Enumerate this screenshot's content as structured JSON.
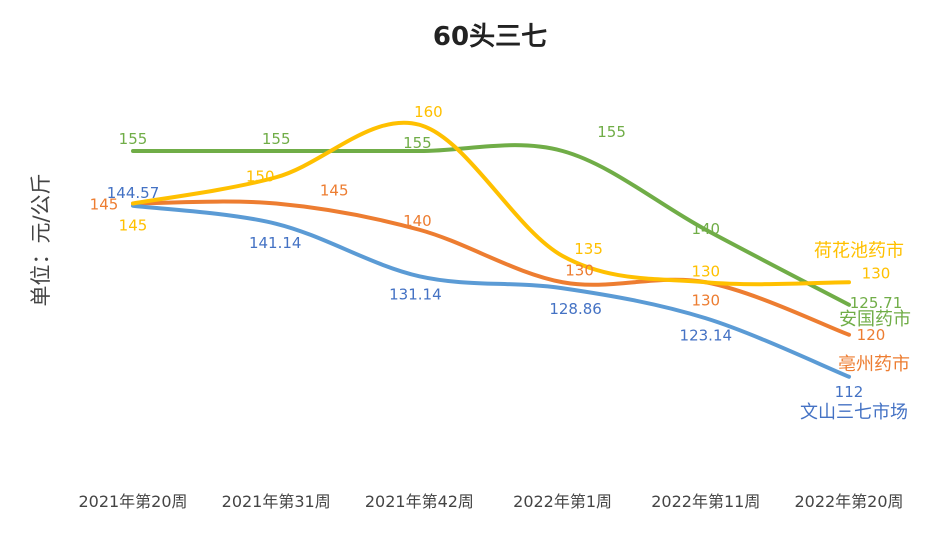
{
  "chart_data": {
    "type": "line",
    "title": "60头三七",
    "xlabel": "",
    "ylabel": "单位：元/公斤",
    "categories": [
      "2021年第20周",
      "2021年第31周",
      "2021年第42周",
      "2022年第1周",
      "2022年第11周",
      "2022年第20周"
    ],
    "ylim": [
      95,
      175
    ],
    "grid": false,
    "legend": "series names at line ends (right)",
    "series": [
      {
        "name": "安国药市",
        "color": "#70AD47",
        "values": [
          155,
          155,
          155,
          155,
          140,
          125.71
        ],
        "labels": [
          "155",
          "155",
          "155",
          "155",
          "140",
          "125.71"
        ]
      },
      {
        "name": "荷花池药市",
        "color": "#FFC000",
        "values": [
          145,
          150,
          160,
          135,
          130,
          130
        ],
        "labels": [
          "145",
          "150",
          "160",
          "135",
          "130",
          "130"
        ]
      },
      {
        "name": "亳州药市",
        "color": "#ED7D31",
        "values": [
          145,
          145,
          140,
          130,
          130,
          120
        ],
        "labels": [
          "145",
          "145",
          "140",
          "130",
          "130",
          "120"
        ]
      },
      {
        "name": "文山三七市场",
        "color": "#5B9BD5",
        "label_color": "#4472C4",
        "values": [
          144.57,
          141.14,
          131.14,
          128.86,
          123.14,
          112
        ],
        "labels": [
          "144.57",
          "141.14",
          "131.14",
          "128.86",
          "123.14",
          "112"
        ]
      }
    ]
  }
}
